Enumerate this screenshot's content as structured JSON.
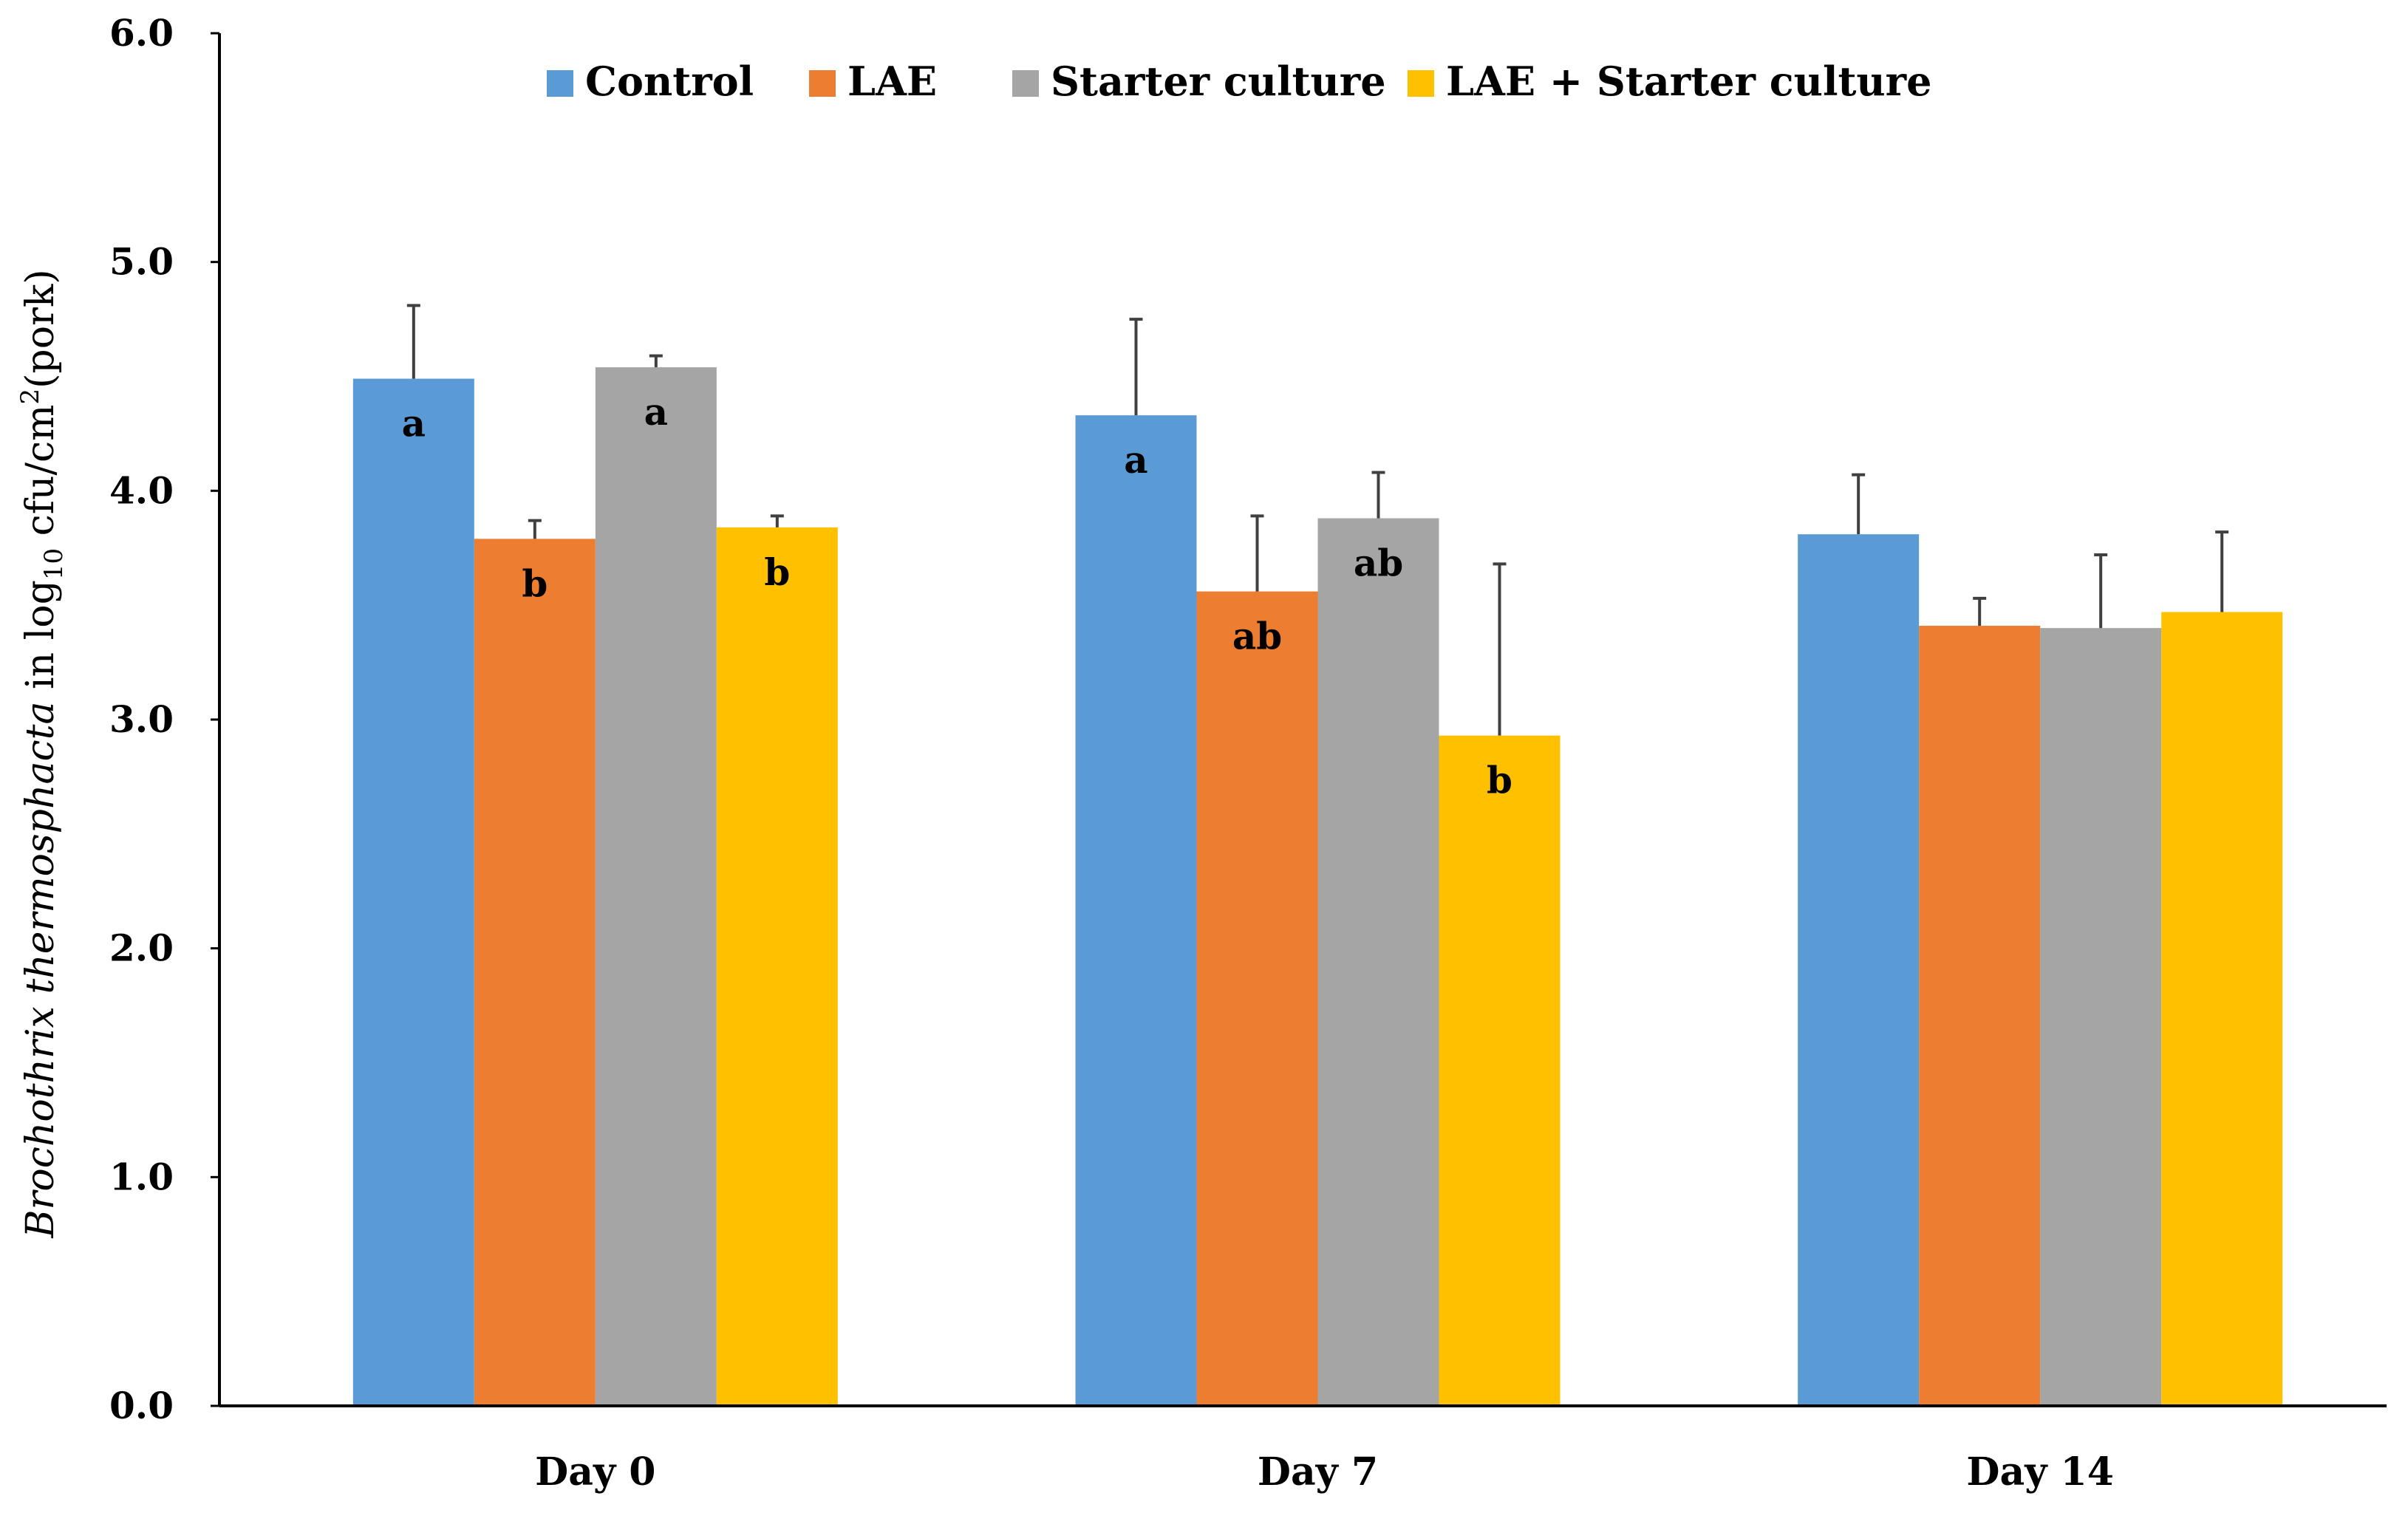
{
  "chart_data": {
    "type": "bar",
    "title": "",
    "xlabel": "",
    "ylabel": {
      "italic": "Brochothrix thermosphacta",
      "text": " in log",
      "subscript": "10",
      "text2": " cfu/cm",
      "superscript": "2",
      "text3": "(pork)"
    },
    "ylim": [
      0,
      6
    ],
    "yticks": [
      "0.0",
      "1.0",
      "2.0",
      "3.0",
      "4.0",
      "5.0",
      "6.0"
    ],
    "grid": false,
    "legend_position": "top",
    "categories": [
      "Day 0",
      "Day 7",
      "Day 14"
    ],
    "series": [
      {
        "name": "Control",
        "color": "#5B9BD5",
        "values": [
          4.49,
          4.33,
          3.81
        ],
        "errors": [
          0.32,
          0.42,
          0.26
        ],
        "labels": [
          "a",
          "a",
          ""
        ]
      },
      {
        "name": "LAE",
        "color": "#ED7D31",
        "values": [
          3.79,
          3.56,
          3.41
        ],
        "errors": [
          0.08,
          0.33,
          0.12
        ],
        "labels": [
          "b",
          "ab",
          ""
        ]
      },
      {
        "name": "Starter culture",
        "color": "#A5A5A5",
        "values": [
          4.54,
          3.88,
          3.4
        ],
        "errors": [
          0.05,
          0.2,
          0.32
        ],
        "labels": [
          "a",
          "ab",
          ""
        ]
      },
      {
        "name": "LAE + Starter culture",
        "color": "#FFC000",
        "values": [
          3.84,
          2.93,
          3.47
        ],
        "errors": [
          0.05,
          0.75,
          0.35
        ],
        "labels": [
          "b",
          "b",
          ""
        ]
      }
    ]
  }
}
